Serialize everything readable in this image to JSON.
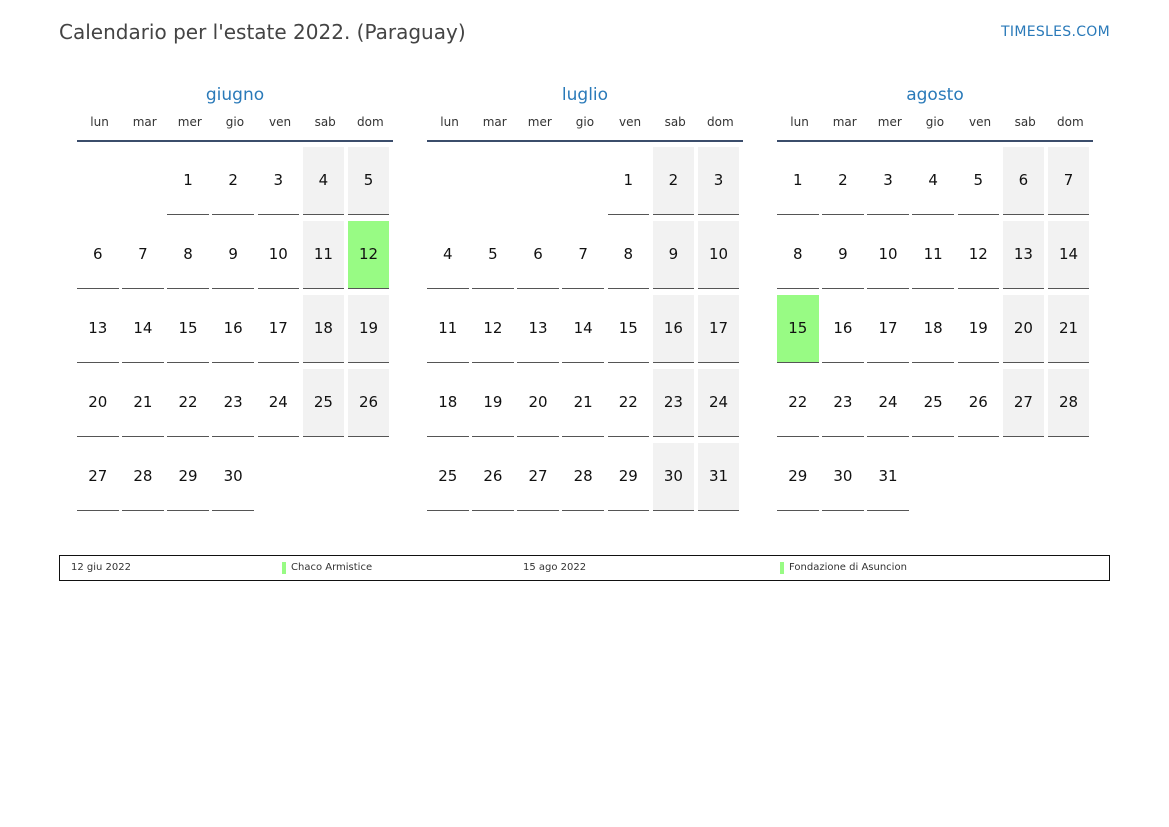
{
  "header": {
    "title": "Calendario per l'estate 2022. (Paraguay)",
    "site": "TIMESLES.COM"
  },
  "weekdays": [
    "lun",
    "mar",
    "mer",
    "gio",
    "ven",
    "sab",
    "dom"
  ],
  "months": [
    {
      "name": "giugno",
      "offset": 2,
      "days": 30,
      "holidays": [
        12
      ]
    },
    {
      "name": "luglio",
      "offset": 4,
      "days": 31,
      "holidays": []
    },
    {
      "name": "agosto",
      "offset": 0,
      "days": 31,
      "holidays": [
        15
      ]
    }
  ],
  "colors": {
    "accent": "#2a7ab9",
    "holiday": "#98fb84",
    "weekend": "#f2f2f2"
  },
  "legend": [
    {
      "date": "12 giu 2022",
      "name": "Chaco Armistice"
    },
    {
      "date": "15 ago 2022",
      "name": "Fondazione di Asuncion"
    }
  ]
}
